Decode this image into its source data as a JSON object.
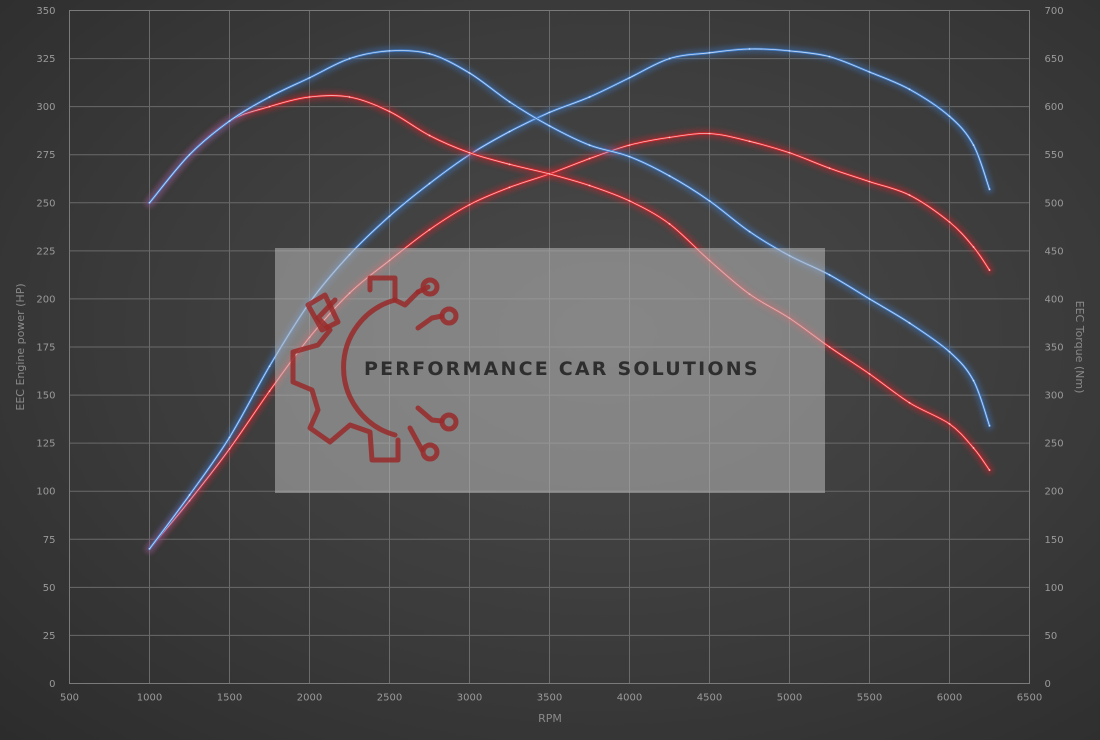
{
  "chart_data": {
    "type": "line",
    "title": "",
    "xlabel": "RPM",
    "ylabel_left": "EEC Engine power (HP)",
    "ylabel_right": "EEC Torque (Nm)",
    "xlim": [
      500,
      6500
    ],
    "ylim_left": [
      0,
      350
    ],
    "ylim_right": [
      0,
      700
    ],
    "x_ticks": [
      500,
      1000,
      1500,
      2000,
      2500,
      3000,
      3500,
      4000,
      4500,
      5000,
      5500,
      6000,
      6500
    ],
    "y_ticks_left": [
      0,
      25,
      50,
      75,
      100,
      125,
      150,
      175,
      200,
      225,
      250,
      275,
      300,
      325,
      350
    ],
    "y_ticks_right": [
      0,
      50,
      100,
      150,
      200,
      250,
      300,
      350,
      400,
      450,
      500,
      550,
      600,
      650,
      700
    ],
    "grid": true,
    "legend": "none",
    "series": [
      {
        "axis": "left",
        "color": "#e0242a",
        "x": [
          1000,
          1250,
          1500,
          1750,
          2000,
          2250,
          2500,
          2750,
          3000,
          3250,
          3500,
          3750,
          4000,
          4250,
          4500,
          4750,
          5000,
          5250,
          5500,
          5750,
          6000,
          6150,
          6250
        ],
        "y": [
          70,
          95,
          122,
          152,
          180,
          203,
          220,
          236,
          249,
          258,
          265,
          273,
          280,
          284,
          286,
          282,
          276,
          268,
          261,
          254,
          240,
          227,
          215
        ]
      },
      {
        "axis": "left",
        "color": "#3f7fd0",
        "x": [
          1000,
          1250,
          1500,
          1750,
          2000,
          2250,
          2500,
          2750,
          3000,
          3250,
          3500,
          3750,
          4000,
          4250,
          4500,
          4750,
          5000,
          5250,
          5500,
          5750,
          6000,
          6150,
          6250
        ],
        "y": [
          70,
          98,
          128,
          165,
          198,
          223,
          243,
          260,
          275,
          287,
          297,
          305,
          315,
          325,
          328,
          330,
          329,
          326,
          318,
          309,
          295,
          280,
          257
        ]
      },
      {
        "axis": "right",
        "color": "#e0242a",
        "x": [
          1000,
          1250,
          1500,
          1750,
          2000,
          2250,
          2500,
          2750,
          3000,
          3250,
          3500,
          3750,
          4000,
          4250,
          4500,
          4750,
          5000,
          5250,
          5500,
          5750,
          6000,
          6150,
          6250
        ],
        "y": [
          500,
          550,
          585,
          600,
          610,
          610,
          595,
          570,
          552,
          540,
          530,
          518,
          502,
          478,
          440,
          405,
          380,
          350,
          322,
          292,
          270,
          245,
          222
        ]
      },
      {
        "axis": "right",
        "color": "#3f7fd0",
        "x": [
          1000,
          1250,
          1500,
          1750,
          2000,
          2250,
          2500,
          2750,
          3000,
          3250,
          3500,
          3750,
          4000,
          4250,
          4500,
          4750,
          5000,
          5250,
          5500,
          5750,
          6000,
          6150,
          6250
        ],
        "y": [
          500,
          550,
          585,
          610,
          630,
          650,
          658,
          655,
          635,
          605,
          580,
          560,
          548,
          528,
          502,
          470,
          445,
          425,
          400,
          375,
          345,
          315,
          268
        ]
      }
    ]
  },
  "watermark": {
    "text": "PERFORMANCE CAR SOLUTIONS"
  }
}
